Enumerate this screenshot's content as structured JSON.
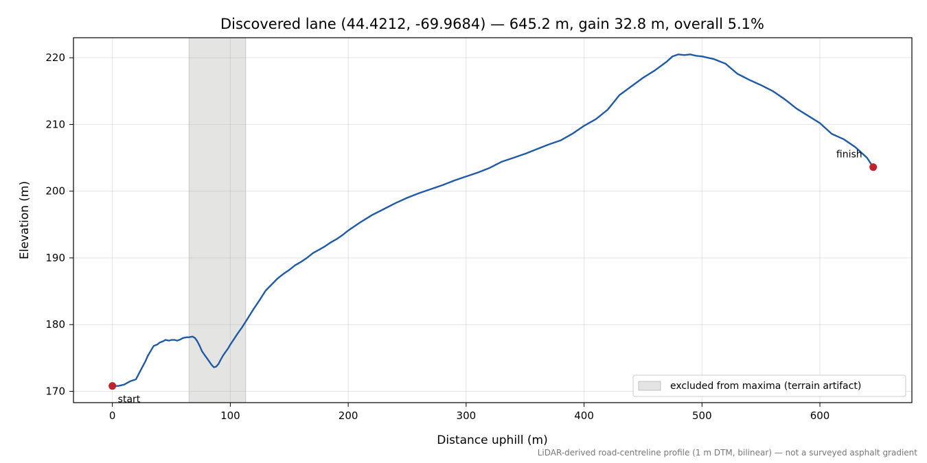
{
  "chart_data": {
    "type": "line",
    "title": "Discovered lane (44.4212, -69.9684) — 645.2 m, gain 32.8 m, overall 5.1%",
    "xlabel": "Distance uphill (m)",
    "ylabel": "Elevation (m)",
    "xlim": [
      -33,
      678
    ],
    "ylim": [
      168.3,
      223.0
    ],
    "xticks": [
      0,
      100,
      200,
      300,
      400,
      500,
      600
    ],
    "yticks": [
      170,
      180,
      190,
      200,
      210,
      220
    ],
    "grid": true,
    "legend_position": "lower-right",
    "excluded_region": {
      "x_start": 65,
      "x_end": 113,
      "color": "#e4e4e3",
      "legend_label": "excluded from maxima (terrain artifact)"
    },
    "series": [
      {
        "color": "#1f5aa6",
        "x": [
          0,
          5,
          10,
          15,
          20,
          22,
          25,
          28,
          30,
          33,
          35,
          38,
          40,
          43,
          45,
          48,
          50,
          53,
          55,
          58,
          60,
          63,
          65,
          68,
          70,
          72,
          74,
          76,
          78,
          80,
          82,
          84,
          86,
          88,
          90,
          92,
          94,
          96,
          98,
          100,
          103,
          106,
          110,
          115,
          120,
          125,
          130,
          135,
          140,
          145,
          150,
          155,
          160,
          165,
          170,
          175,
          180,
          185,
          190,
          195,
          200,
          210,
          220,
          230,
          240,
          250,
          260,
          270,
          280,
          290,
          300,
          310,
          320,
          330,
          340,
          350,
          360,
          370,
          380,
          390,
          400,
          410,
          420,
          430,
          440,
          450,
          460,
          470,
          475,
          480,
          485,
          490,
          495,
          500,
          505,
          510,
          520,
          530,
          540,
          550,
          560,
          570,
          580,
          590,
          600,
          610,
          620,
          630,
          635,
          640,
          645.2
        ],
        "y": [
          170.8,
          170.8,
          171.0,
          171.5,
          171.8,
          172.5,
          173.5,
          174.5,
          175.3,
          176.2,
          176.8,
          177.0,
          177.3,
          177.5,
          177.7,
          177.6,
          177.7,
          177.7,
          177.6,
          177.8,
          178.0,
          178.1,
          178.1,
          178.2,
          178.0,
          177.5,
          176.8,
          176.0,
          175.5,
          175.0,
          174.5,
          174.0,
          173.6,
          173.7,
          174.1,
          174.8,
          175.4,
          175.9,
          176.4,
          177.0,
          177.8,
          178.6,
          179.6,
          181.0,
          182.4,
          183.7,
          185.1,
          186.0,
          186.9,
          187.6,
          188.2,
          188.9,
          189.4,
          190.0,
          190.7,
          191.2,
          191.7,
          192.3,
          192.8,
          193.4,
          194.1,
          195.3,
          196.4,
          197.3,
          198.2,
          199.0,
          199.7,
          200.3,
          200.9,
          201.6,
          202.2,
          202.8,
          203.5,
          204.4,
          205.0,
          205.6,
          206.3,
          207.0,
          207.6,
          208.6,
          209.8,
          210.8,
          212.2,
          214.4,
          215.7,
          217.0,
          218.1,
          219.4,
          220.2,
          220.5,
          220.4,
          220.5,
          220.3,
          220.2,
          220.0,
          219.8,
          219.1,
          217.6,
          216.7,
          215.9,
          215.0,
          213.8,
          212.4,
          211.3,
          210.2,
          208.6,
          207.8,
          206.6,
          205.8,
          205.0,
          203.6
        ]
      }
    ],
    "annotations": [
      {
        "text": "start",
        "x": 0,
        "y": 170.8,
        "color": "#c0222f"
      },
      {
        "text": "finish",
        "x": 645.2,
        "y": 203.6,
        "color": "#c0222f"
      }
    ],
    "footnote": "LiDAR-derived road-centreline profile (1 m DTM, bilinear) — not a surveyed asphalt gradient"
  }
}
